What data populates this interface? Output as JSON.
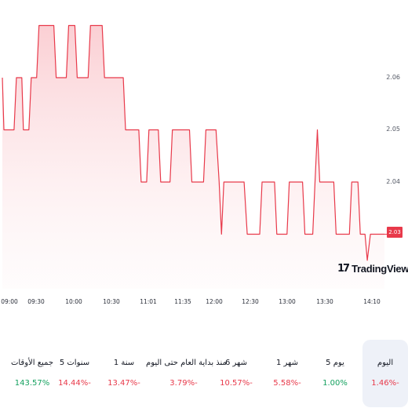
{
  "chart": {
    "y_axis": [
      "2.06",
      "2.05",
      "2.04",
      "2.03"
    ],
    "x_axis": [
      "09:00",
      "09:30",
      "10:00",
      "10:30",
      "11:01",
      "11:35",
      "12:00",
      "12:30",
      "13:00",
      "13:30",
      "14:10"
    ],
    "last_price": "2.03",
    "logo": "TradingView",
    "logo_mark": "17",
    "line_color": "#e8394a"
  },
  "chart_data": {
    "type": "area",
    "x_unit": "time",
    "x_range": [
      "09:00",
      "14:10"
    ],
    "ylim": [
      2.025,
      2.07
    ],
    "last": 2.03,
    "series": [
      {
        "points": [
          [
            0,
            2.06
          ],
          [
            2,
            2.05
          ],
          [
            15,
            2.05
          ],
          [
            18,
            2.06
          ],
          [
            25,
            2.06
          ],
          [
            27,
            2.05
          ],
          [
            34,
            2.05
          ],
          [
            37,
            2.06
          ],
          [
            44,
            2.06
          ],
          [
            47,
            2.07
          ],
          [
            66,
            2.07
          ],
          [
            69,
            2.06
          ],
          [
            82,
            2.06
          ],
          [
            85,
            2.07
          ],
          [
            93,
            2.07
          ],
          [
            96,
            2.06
          ],
          [
            110,
            2.06
          ],
          [
            113,
            2.07
          ],
          [
            128,
            2.07
          ],
          [
            131,
            2.06
          ],
          [
            143,
            2.06
          ],
          [
            146,
            2.06
          ],
          [
            155,
            2.06
          ],
          [
            158,
            2.05
          ],
          [
            175,
            2.05
          ],
          [
            178,
            2.04
          ],
          [
            185,
            2.04
          ],
          [
            188,
            2.05
          ],
          [
            200,
            2.05
          ],
          [
            203,
            2.04
          ],
          [
            215,
            2.04
          ],
          [
            218,
            2.05
          ],
          [
            240,
            2.05
          ],
          [
            243,
            2.04
          ],
          [
            258,
            2.04
          ],
          [
            261,
            2.05
          ],
          [
            274,
            2.05
          ],
          [
            278,
            2.04
          ],
          [
            281,
            2.03
          ],
          [
            284,
            2.04
          ],
          [
            310,
            2.04
          ],
          [
            314,
            2.03
          ],
          [
            330,
            2.03
          ],
          [
            333,
            2.04
          ],
          [
            349,
            2.04
          ],
          [
            352,
            2.03
          ],
          [
            365,
            2.03
          ],
          [
            368,
            2.04
          ],
          [
            385,
            2.04
          ],
          [
            388,
            2.03
          ],
          [
            398,
            2.03
          ],
          [
            401,
            2.04
          ],
          [
            404,
            2.05
          ],
          [
            407,
            2.04
          ],
          [
            425,
            2.04
          ],
          [
            428,
            2.03
          ],
          [
            445,
            2.03
          ],
          [
            448,
            2.04
          ],
          [
            456,
            2.04
          ],
          [
            459,
            2.03
          ],
          [
            465,
            2.03
          ],
          [
            468,
            2.025
          ],
          [
            472,
            2.03
          ],
          [
            490,
            2.03
          ]
        ]
      }
    ]
  },
  "periods": [
    {
      "label": "اليوم",
      "value": "1.46%-",
      "trend": "neg",
      "active": true
    },
    {
      "label": "5 يوم",
      "value": "1.00%",
      "trend": "pos",
      "active": false
    },
    {
      "label": "1 شهر",
      "value": "5.58%-",
      "trend": "neg",
      "active": false
    },
    {
      "label": "6 شهر",
      "value": "10.57%-",
      "trend": "neg",
      "active": false
    },
    {
      "label": "منذ بداية العام حتى اليوم",
      "value": "3.79%-",
      "trend": "neg",
      "active": false
    },
    {
      "label": "1 سنة",
      "value": "13.47%-",
      "trend": "neg",
      "active": false
    },
    {
      "label": "5 سنوات",
      "value": "14.44%-",
      "trend": "neg",
      "active": false
    },
    {
      "label": "جميع الأوقات",
      "value": "143.57%",
      "trend": "pos",
      "active": false
    }
  ]
}
